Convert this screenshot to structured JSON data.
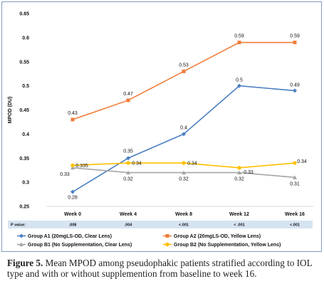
{
  "chart_data": {
    "type": "line",
    "ylabel": "MPOD (DU)",
    "ylim": [
      0.25,
      0.65
    ],
    "yticks": [
      "0.25",
      "0.3",
      "0.35",
      "0.4",
      "0.45",
      "0.5",
      "0.55",
      "0.6",
      "0.65"
    ],
    "categories": [
      "Week 0",
      "Week 4",
      "Week 8",
      "Week 12",
      "Week 16"
    ],
    "p_value_label": "P value:",
    "p_values": [
      ".008",
      ".004",
      "<.001",
      "< .001",
      "<.001"
    ],
    "legend_position": "bottom",
    "series": [
      {
        "name": "Group A1 (20mgLS-OD, Clear Lens)",
        "color": "#4a7fc1",
        "marker": "diamond",
        "values": [
          0.28,
          0.35,
          0.4,
          0.5,
          0.49
        ],
        "labels": [
          "0.28",
          "0.35",
          "0.4",
          "0.5",
          "0.49"
        ]
      },
      {
        "name": "Group A2 (20mgLS-OD, Yellow Lens)",
        "color": "#ef7d3c",
        "marker": "square",
        "values": [
          0.43,
          0.47,
          0.53,
          0.59,
          0.59
        ],
        "labels": [
          "0.43",
          "0.47",
          "0.53",
          "0.59",
          "0.59"
        ]
      },
      {
        "name": "Group B1 (No Supplementation, Clear Lens)",
        "color": "#a5a5a5",
        "marker": "triangle",
        "values": [
          0.33,
          0.32,
          0.32,
          0.32,
          0.31
        ],
        "labels": [
          "0.33",
          "0.32",
          "0.32",
          "0.32",
          "0.31"
        ]
      },
      {
        "name": "Group B2 (No Supplementation, Yellow Lens)",
        "color": "#ffc000",
        "marker": "circle",
        "values": [
          0.335,
          0.34,
          0.34,
          0.33,
          0.34
        ],
        "labels": [
          "0.335",
          "0.34",
          "0.34",
          "0.33",
          "0.34"
        ]
      }
    ]
  },
  "caption": {
    "label": "Figure 5.",
    "text": " Mean MPOD among pseudophakic patients stratified according to IOL type and with or without supplemention from baseline to week 16."
  }
}
